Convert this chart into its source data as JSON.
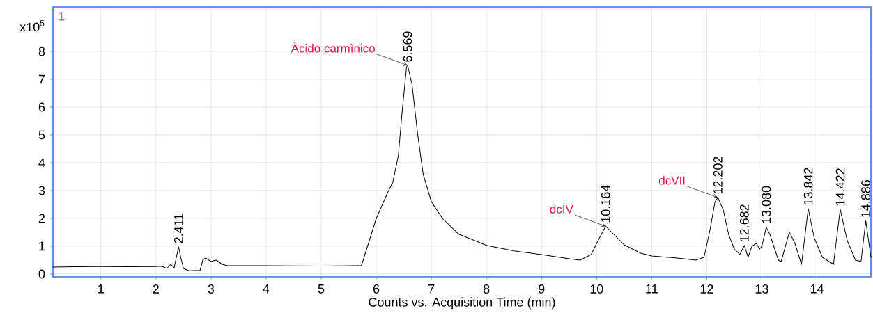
{
  "chart_data": {
    "type": "line",
    "xlabel": "Counts vs. Acquisition Time (min)",
    "ylabel": "x10$^{5}$",
    "xlim": [
      0.13,
      14.98
    ],
    "ylim": [
      -0.1,
      9.6
    ],
    "xticks": [
      1,
      2,
      3,
      4,
      5,
      6,
      7,
      8,
      9,
      10,
      11,
      12,
      13,
      14
    ],
    "yticks": [
      0,
      1,
      2,
      3,
      4,
      5,
      6,
      7,
      8
    ],
    "grid": true,
    "x": [
      0.13,
      0.5,
      1.0,
      1.5,
      2.0,
      2.1,
      2.2,
      2.27,
      2.33,
      2.37,
      2.411,
      2.45,
      2.5,
      2.6,
      2.8,
      2.85,
      2.9,
      3.0,
      3.05,
      3.1,
      3.2,
      3.3,
      4.0,
      5.0,
      5.73,
      6.0,
      6.2,
      6.3,
      6.4,
      6.47,
      6.55,
      6.569,
      6.65,
      6.75,
      6.85,
      7.0,
      7.2,
      7.5,
      8.0,
      8.5,
      9.0,
      9.5,
      9.7,
      9.9,
      10.0,
      10.164,
      10.3,
      10.5,
      10.8,
      11.0,
      11.5,
      11.8,
      11.95,
      12.05,
      12.15,
      12.202,
      12.3,
      12.4,
      12.5,
      12.6,
      12.682,
      12.75,
      12.82,
      12.9,
      12.96,
      13.0,
      13.08,
      13.15,
      13.3,
      13.35,
      13.5,
      13.6,
      13.72,
      13.842,
      13.95,
      14.1,
      14.3,
      14.422,
      14.55,
      14.7,
      14.8,
      14.886,
      14.98
    ],
    "series": [
      {
        "color": "#000000",
        "values": [
          0.25,
          0.26,
          0.27,
          0.26,
          0.27,
          0.28,
          0.2,
          0.35,
          0.22,
          0.6,
          0.98,
          0.6,
          0.2,
          0.12,
          0.13,
          0.5,
          0.58,
          0.45,
          0.48,
          0.5,
          0.35,
          0.3,
          0.3,
          0.29,
          0.3,
          2.0,
          2.9,
          3.3,
          4.25,
          5.85,
          7.45,
          7.5,
          6.8,
          5.05,
          3.6,
          2.6,
          2.0,
          1.43,
          1.03,
          0.83,
          0.7,
          0.55,
          0.5,
          0.7,
          1.1,
          1.72,
          1.45,
          1.05,
          0.75,
          0.65,
          0.57,
          0.5,
          0.6,
          1.5,
          2.6,
          2.75,
          2.3,
          1.4,
          0.9,
          0.7,
          1.03,
          0.6,
          1.0,
          1.1,
          0.9,
          1.0,
          1.69,
          1.4,
          0.5,
          0.45,
          1.51,
          1.1,
          0.35,
          2.35,
          1.3,
          0.6,
          0.35,
          2.33,
          1.2,
          0.5,
          0.45,
          1.91,
          0.6
        ]
      }
    ],
    "annotations": [
      "1",
      {
        "text": "2.411",
        "x": 2.411,
        "y": 0.98
      },
      {
        "text": "6.569",
        "x": 6.569,
        "y": 7.5
      },
      {
        "text": "10.164",
        "x": 10.164,
        "y": 1.72
      },
      {
        "text": "12.202",
        "x": 12.202,
        "y": 2.75
      },
      {
        "text": "12.682",
        "x": 12.682,
        "y": 1.03
      },
      {
        "text": "13.080",
        "x": 13.08,
        "y": 1.69
      },
      {
        "text": "13.842",
        "x": 13.842,
        "y": 2.35
      },
      {
        "text": "14.422",
        "x": 14.422,
        "y": 2.33
      },
      {
        "text": "14.886",
        "x": 14.886,
        "y": 1.91
      },
      {
        "text": "Àcido carmìnico",
        "x": 6.569,
        "y": 7.5
      },
      {
        "text": "dcIV",
        "x": 10.164,
        "y": 1.72
      },
      {
        "text": "dcVII",
        "x": 12.202,
        "y": 2.75
      }
    ]
  }
}
